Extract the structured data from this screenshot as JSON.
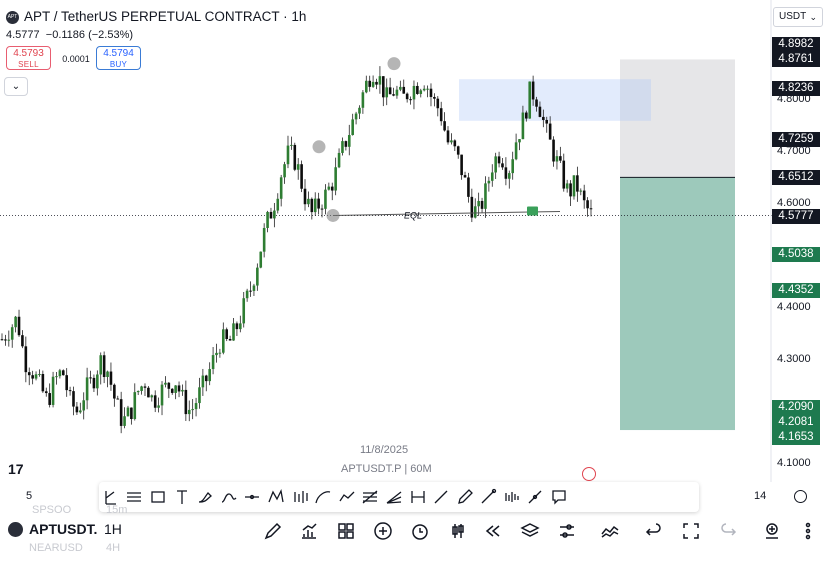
{
  "header": {
    "logo": "APT",
    "title": "APT / TetherUS PERPETUAL CONTRACT · 1h",
    "last_price": "4.5777",
    "change": "−0.1186 (−2.53%)",
    "sell_price": "4.5793",
    "sell_label": "SELL",
    "buy_price": "4.5794",
    "buy_label": "BUY",
    "spread": "0.0001",
    "collapse_icon": "chevron-down-icon",
    "currency": "USDT"
  },
  "price_axis": {
    "labels": [
      "4.8000",
      "4.7000",
      "4.6000",
      "4.4000",
      "4.3000",
      "4.1000"
    ],
    "tags": [
      {
        "value": "4.8982",
        "style": "black"
      },
      {
        "value": "4.8761",
        "style": "black"
      },
      {
        "value": "4.8236",
        "style": "black"
      },
      {
        "value": "4.7259",
        "style": "black"
      },
      {
        "value": "4.6512",
        "style": "black"
      },
      {
        "value": "4.5777",
        "style": "black"
      },
      {
        "value": "4.5038",
        "style": "green"
      },
      {
        "value": "4.4352",
        "style": "green"
      },
      {
        "value": "4.2090",
        "style": "green"
      },
      {
        "value": "4.2081",
        "style": "green"
      },
      {
        "value": "4.1653",
        "style": "green"
      }
    ]
  },
  "annotations": {
    "eql_label": "EQL",
    "date_label": "11/8/2025",
    "watermark": "APTUSDT.P | 60M"
  },
  "time_axis": {
    "left": "5",
    "right": "14"
  },
  "drawing_tools": [
    "trend-angle-icon",
    "fib-retracement-icon",
    "rectangle-icon",
    "text-icon",
    "brush-icon",
    "path-icon",
    "horizontal-line-icon",
    "pattern-icon",
    "bars-pattern-icon",
    "curve-icon",
    "polyline-icon",
    "fib-channel-icon",
    "fib-fan-icon",
    "date-range-icon",
    "ray-icon",
    "highlighter-icon",
    "long-position-icon",
    "volume-profile-icon",
    "info-line-icon",
    "callout-icon"
  ],
  "bottom_bar": {
    "symbol": "APTUSDT.",
    "interval": "1H",
    "faded_symbol_top": "SPSOO",
    "faded_interval_top": "15m",
    "faded_symbol_bottom": "NEARUSD",
    "faded_interval_bottom": "4H",
    "icons": [
      "draw-icon",
      "indicators-icon",
      "layouts-icon",
      "add-icon",
      "alert-icon",
      "chart-type-icon",
      "replay-icon",
      "layers-icon",
      "settings-icon",
      "compare-icon",
      "undo-icon",
      "fullscreen-icon",
      "redo-icon",
      "trade-icon",
      "more-icon"
    ]
  },
  "chart_data": {
    "type": "candlestick",
    "timeframe": "1h",
    "last_price": 4.5777,
    "date_marker": "11/8/2025",
    "ylim": [
      4.08,
      4.92
    ],
    "annotations": [
      {
        "type": "equal-lows",
        "label": "EQL",
        "price": 4.578
      },
      {
        "type": "supply-zone",
        "top": 4.84,
        "bottom": 4.76
      },
      {
        "type": "short-position",
        "entry": 4.6512,
        "stop": 4.8761,
        "target": 4.1653
      }
    ],
    "close_path": [
      4.34,
      4.36,
      4.38,
      4.3,
      4.28,
      4.25,
      4.22,
      4.26,
      4.28,
      4.22,
      4.2,
      4.24,
      4.26,
      4.3,
      4.28,
      4.22,
      4.18,
      4.2,
      4.24,
      4.26,
      4.22,
      4.24,
      4.25,
      4.26,
      4.22,
      4.2,
      4.23,
      4.26,
      4.3,
      4.34,
      4.33,
      4.36,
      4.4,
      4.44,
      4.5,
      4.56,
      4.6,
      4.66,
      4.7,
      4.68,
      4.62,
      4.58,
      4.6,
      4.62,
      4.65,
      4.7,
      4.74,
      4.78,
      4.82,
      4.86,
      4.84,
      4.8,
      4.82,
      4.8,
      4.82,
      4.83,
      4.84,
      4.8,
      4.78,
      4.72,
      4.7,
      4.66,
      4.6,
      4.58,
      4.62,
      4.68,
      4.7,
      4.66,
      4.72,
      4.76,
      4.82,
      4.8,
      4.74,
      4.7,
      4.66,
      4.62,
      4.64,
      4.6,
      4.58
    ]
  }
}
